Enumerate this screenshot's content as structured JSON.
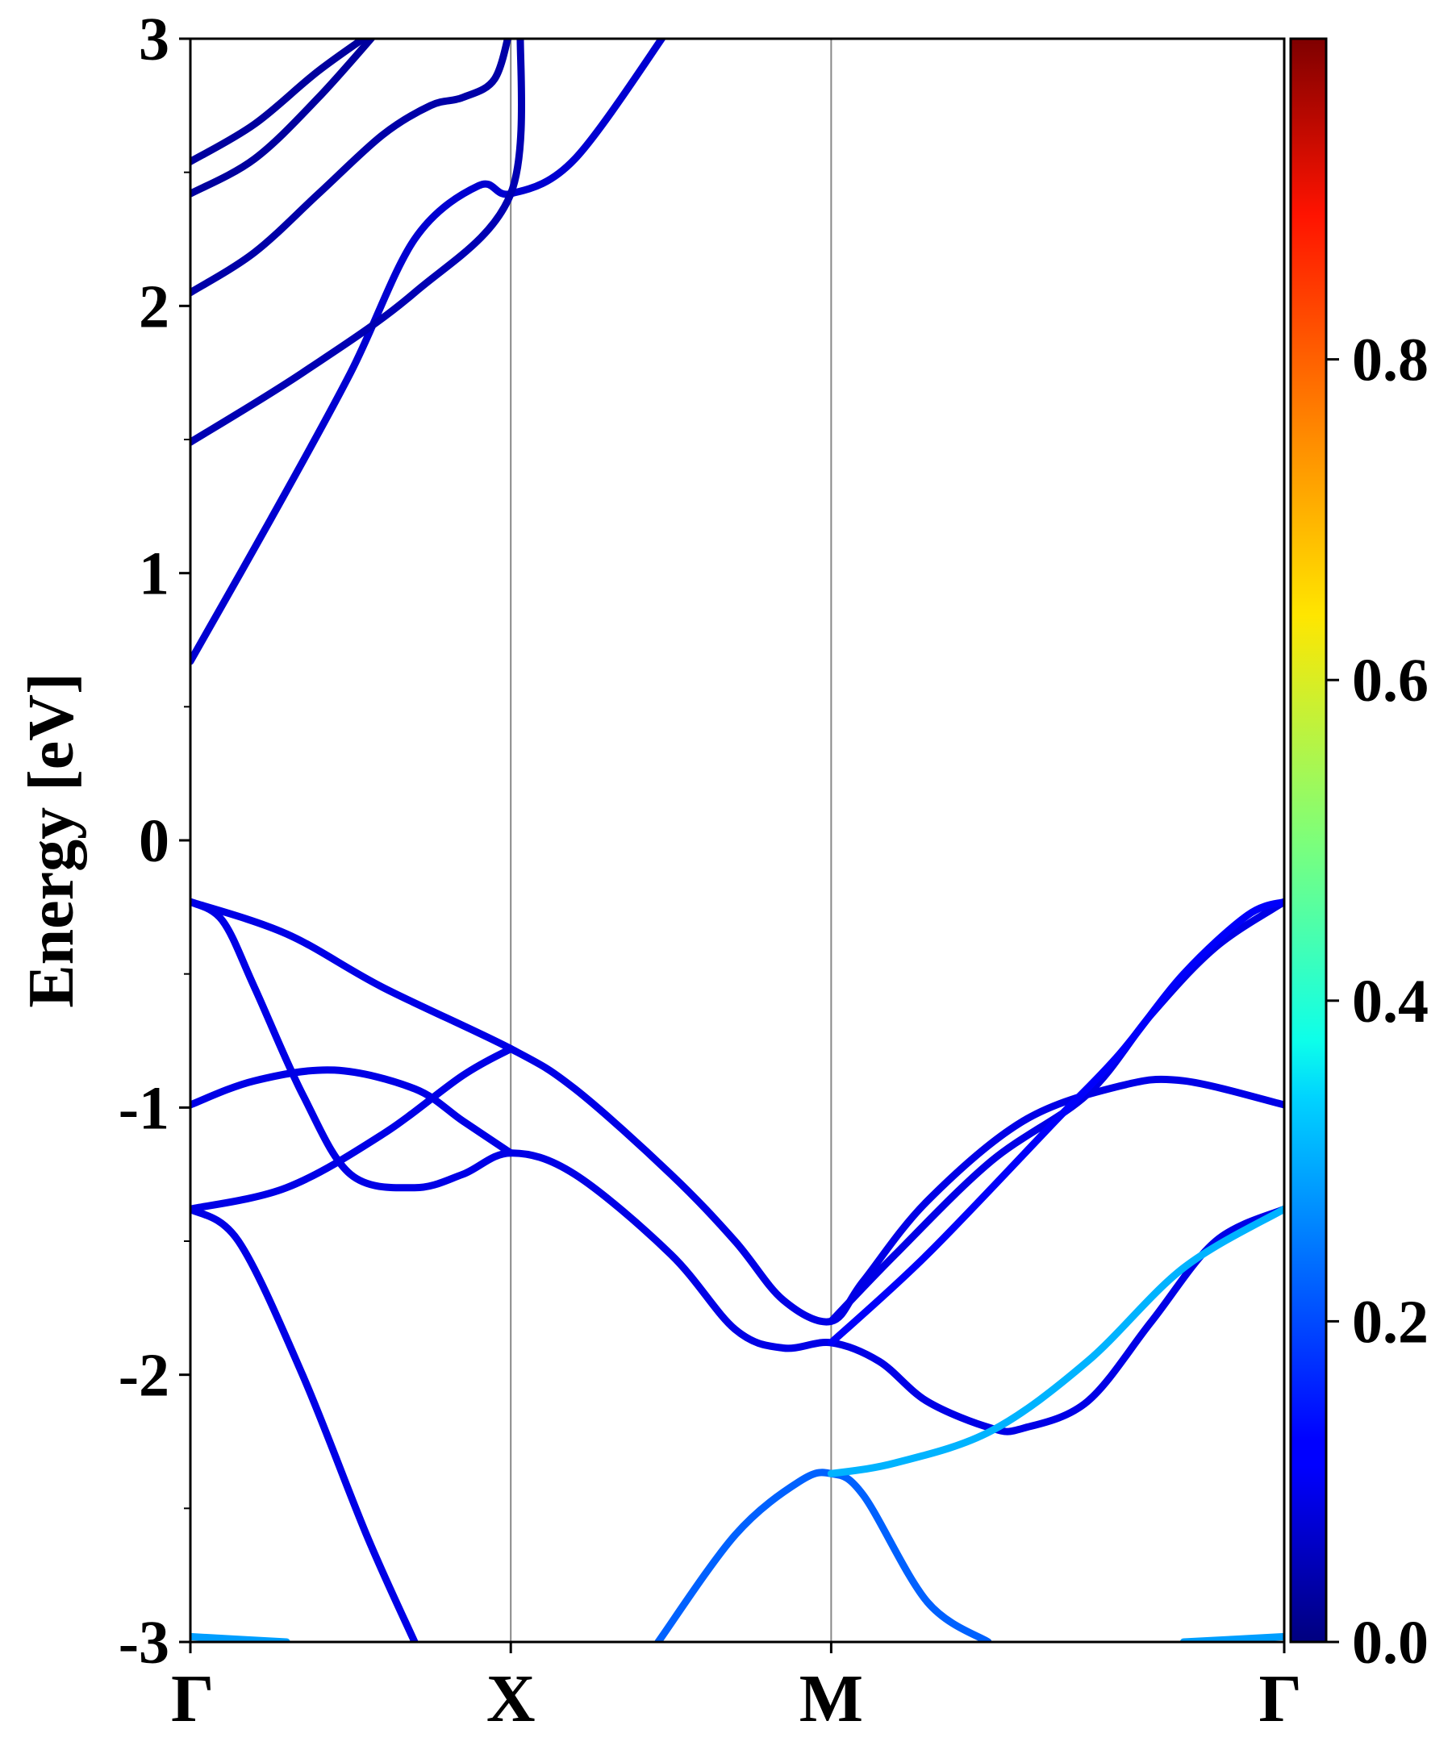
{
  "chart_data": {
    "type": "line",
    "subtype": "electronic-band-structure",
    "ylabel": "Energy [eV]",
    "xlabel": "",
    "ylim": [
      -3,
      3
    ],
    "yticks": [
      {
        "value": 3,
        "label": "3"
      },
      {
        "value": 2,
        "label": "2"
      },
      {
        "value": 1,
        "label": "1"
      },
      {
        "value": 0,
        "label": "0"
      },
      {
        "value": -1,
        "label": "-1"
      },
      {
        "value": -2,
        "label": "-2"
      },
      {
        "value": -3,
        "label": "-3"
      }
    ],
    "xlim": [
      0,
      3.414
    ],
    "kpoints": [
      {
        "label": "Γ",
        "x": 0
      },
      {
        "label": "X",
        "x": 1
      },
      {
        "label": "M",
        "x": 2
      },
      {
        "label": "Γ",
        "x": 3.414
      }
    ],
    "grid": false,
    "colormap": {
      "name": "jet",
      "range": [
        0,
        1
      ],
      "ticks": [
        "0.0",
        "0.2",
        "0.4",
        "0.6",
        "0.8"
      ],
      "tick_values": [
        0,
        0.2,
        0.4,
        0.6,
        0.8
      ]
    },
    "bands": [
      {
        "color_value": 0.08,
        "points": [
          [
            0,
            0.67
          ],
          [
            0.25,
            1.2
          ],
          [
            0.5,
            1.75
          ],
          [
            0.7,
            2.25
          ],
          [
            0.9,
            2.45
          ],
          [
            1,
            2.42
          ],
          [
            1.2,
            2.55
          ],
          [
            1.5,
            3.05
          ]
        ]
      },
      {
        "color_value": 0.05,
        "points": [
          [
            0,
            1.49
          ],
          [
            0.35,
            1.75
          ],
          [
            0.7,
            2.05
          ],
          [
            1,
            2.42
          ],
          [
            1.03,
            3.05
          ]
        ]
      },
      {
        "color_value": 0.04,
        "points": [
          [
            0,
            2.05
          ],
          [
            0.2,
            2.2
          ],
          [
            0.4,
            2.42
          ],
          [
            0.6,
            2.64
          ],
          [
            0.75,
            2.75
          ],
          [
            0.85,
            2.78
          ],
          [
            0.95,
            2.85
          ],
          [
            1,
            3.05
          ]
        ]
      },
      {
        "color_value": 0.03,
        "points": [
          [
            0,
            2.42
          ],
          [
            0.2,
            2.55
          ],
          [
            0.4,
            2.78
          ],
          [
            0.6,
            3.05
          ]
        ]
      },
      {
        "color_value": 0.03,
        "points": [
          [
            0,
            2.54
          ],
          [
            0.2,
            2.68
          ],
          [
            0.4,
            2.88
          ],
          [
            0.6,
            3.05
          ]
        ]
      },
      {
        "color_value": 0.1,
        "points": [
          [
            0,
            -0.23
          ],
          [
            0.3,
            -0.35
          ],
          [
            0.6,
            -0.55
          ],
          [
            1,
            -0.78
          ],
          [
            1.2,
            -0.93
          ],
          [
            1.5,
            -1.25
          ],
          [
            1.7,
            -1.5
          ],
          [
            1.85,
            -1.72
          ],
          [
            2,
            -1.8
          ],
          [
            2.1,
            -1.65
          ],
          [
            2.3,
            -1.35
          ],
          [
            2.6,
            -1.05
          ],
          [
            2.9,
            -0.92
          ],
          [
            3.1,
            -0.9
          ],
          [
            3.414,
            -0.99
          ]
        ]
      },
      {
        "color_value": 0.1,
        "points": [
          [
            0,
            -0.23
          ],
          [
            0.1,
            -0.3
          ],
          [
            0.2,
            -0.55
          ],
          [
            0.35,
            -0.95
          ],
          [
            0.5,
            -1.25
          ],
          [
            0.7,
            -1.3
          ],
          [
            0.85,
            -1.25
          ],
          [
            1,
            -1.17
          ],
          [
            1.2,
            -1.25
          ],
          [
            1.5,
            -1.55
          ],
          [
            1.7,
            -1.83
          ],
          [
            1.85,
            -1.9
          ],
          [
            2,
            -1.88
          ],
          [
            2.15,
            -1.95
          ],
          [
            2.3,
            -2.1
          ],
          [
            2.5,
            -2.2
          ],
          [
            2.6,
            -2.2
          ],
          [
            2.8,
            -2.1
          ],
          [
            3.0,
            -1.8
          ],
          [
            3.2,
            -1.5
          ],
          [
            3.414,
            -1.38
          ]
        ]
      },
      {
        "color_value": 0.1,
        "points": [
          [
            0,
            -0.99
          ],
          [
            0.2,
            -0.9
          ],
          [
            0.45,
            -0.86
          ],
          [
            0.7,
            -0.93
          ],
          [
            0.85,
            -1.05
          ],
          [
            1,
            -1.17
          ]
        ]
      },
      {
        "color_value": 0.1,
        "points": [
          [
            0,
            -1.38
          ],
          [
            0.3,
            -1.3
          ],
          [
            0.6,
            -1.1
          ],
          [
            0.85,
            -0.88
          ],
          [
            1,
            -0.78
          ]
        ]
      },
      {
        "color_value": 0.1,
        "points": [
          [
            0,
            -1.38
          ],
          [
            0.15,
            -1.5
          ],
          [
            0.35,
            -2.0
          ],
          [
            0.55,
            -2.6
          ],
          [
            0.7,
            -3.0
          ]
        ]
      },
      {
        "color_value": 0.1,
        "points": [
          [
            2,
            -1.8
          ],
          [
            2.2,
            -1.55
          ],
          [
            2.5,
            -1.2
          ],
          [
            2.8,
            -0.95
          ],
          [
            3.0,
            -0.65
          ],
          [
            3.2,
            -0.4
          ],
          [
            3.414,
            -0.23
          ]
        ]
      },
      {
        "color_value": 0.12,
        "points": [
          [
            2,
            -1.88
          ],
          [
            2.3,
            -1.55
          ],
          [
            2.7,
            -1.05
          ],
          [
            2.9,
            -0.8
          ],
          [
            3.1,
            -0.5
          ],
          [
            3.3,
            -0.28
          ],
          [
            3.414,
            -0.23
          ]
        ]
      },
      {
        "color_value": 0.22,
        "points": [
          [
            1.46,
            -3.0
          ],
          [
            1.7,
            -2.6
          ],
          [
            1.9,
            -2.4
          ],
          [
            2,
            -2.37
          ],
          [
            2.1,
            -2.45
          ],
          [
            2.3,
            -2.85
          ],
          [
            2.49,
            -3.0
          ]
        ]
      },
      {
        "color_value": 0.3,
        "points": [
          [
            2,
            -2.37
          ],
          [
            2.2,
            -2.33
          ],
          [
            2.5,
            -2.21
          ],
          [
            2.8,
            -1.95
          ],
          [
            3.1,
            -1.6
          ],
          [
            3.414,
            -1.38
          ]
        ]
      },
      {
        "color_value": 0.28,
        "points": [
          [
            0,
            -2.98
          ],
          [
            0.3,
            -3.0
          ]
        ]
      },
      {
        "color_value": 0.28,
        "points": [
          [
            3.1,
            -3.0
          ],
          [
            3.414,
            -2.98
          ]
        ]
      }
    ]
  }
}
